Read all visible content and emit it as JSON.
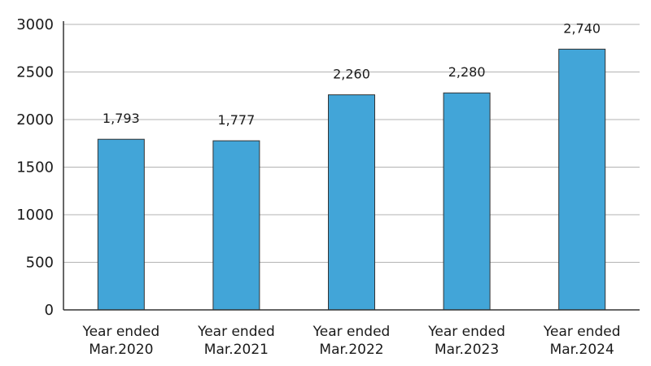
{
  "chart_data": {
    "type": "bar",
    "categories": [
      [
        "Year ended",
        "Mar.2020"
      ],
      [
        "Year ended",
        "Mar.2021"
      ],
      [
        "Year ended",
        "Mar.2022"
      ],
      [
        "Year ended",
        "Mar.2023"
      ],
      [
        "Year ended",
        "Mar.2024"
      ]
    ],
    "values": [
      1793,
      1777,
      2260,
      2280,
      2740
    ],
    "data_labels": [
      "1,793",
      "1,777",
      "2,260",
      "2,280",
      "2,740"
    ],
    "yticks": [
      "0",
      "500",
      "1000",
      "1500",
      "2000",
      "2500",
      "3000"
    ],
    "ylim": [
      0,
      3000
    ],
    "grid": true,
    "title": "",
    "xlabel": "",
    "ylabel": "",
    "colors": {
      "bar": "#42a5d8",
      "bar_edge": "#333333",
      "grid": "#b3b3b3",
      "axis": "#333333"
    }
  }
}
